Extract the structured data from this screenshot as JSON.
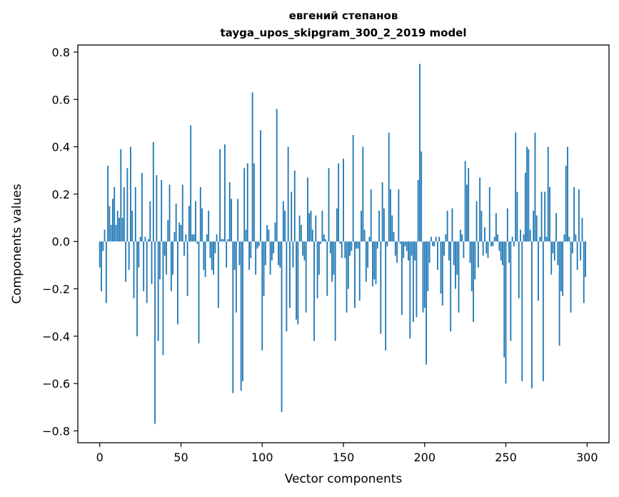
{
  "chart_data": {
    "type": "bar",
    "title": "евгений степанов",
    "subtitle": "tayga_upos_skipgram_300_2_2019 model",
    "xlabel": "Vector components",
    "ylabel": "Components values",
    "xlim": [
      -13.5,
      313.5
    ],
    "ylim": [
      -0.85,
      0.83
    ],
    "xticks": [
      0,
      50,
      100,
      150,
      200,
      250,
      300
    ],
    "yticks": [
      -0.8,
      -0.6,
      -0.4,
      -0.2,
      0.0,
      0.2,
      0.4,
      0.6,
      0.8
    ],
    "ytick_labels": [
      "−0.8",
      "−0.6",
      "−0.4",
      "−0.2",
      "0.0",
      "0.2",
      "0.4",
      "0.6",
      "0.8"
    ],
    "bar_color": "#1f77b4",
    "grid": false,
    "x": "0..299 (one bar per vector component)",
    "values": [
      -0.11,
      -0.21,
      -0.04,
      0.05,
      -0.26,
      0.32,
      0.15,
      0.07,
      0.18,
      0.23,
      0.07,
      0.13,
      0.1,
      0.39,
      0.1,
      0.23,
      -0.17,
      0.31,
      -0.12,
      0.4,
      0.13,
      -0.24,
      0.23,
      -0.4,
      -0.11,
      0.02,
      0.29,
      -0.21,
      0.02,
      -0.26,
      0.01,
      0.17,
      -0.18,
      0.42,
      -0.77,
      0.28,
      -0.42,
      -0.16,
      0.26,
      -0.48,
      -0.06,
      -0.14,
      0.09,
      0.24,
      -0.21,
      -0.14,
      0.04,
      0.16,
      -0.35,
      0.08,
      0.07,
      0.24,
      -0.06,
      0.03,
      -0.23,
      0.15,
      0.49,
      0.03,
      0.03,
      0.17,
      -0.01,
      -0.43,
      0.23,
      0.14,
      -0.12,
      -0.15,
      0.03,
      0.13,
      -0.07,
      -0.12,
      -0.14,
      -0.05,
      0.03,
      -0.28,
      0.39,
      0.01,
      0.01,
      0.41,
      -0.11,
      0.01,
      0.25,
      0.18,
      -0.64,
      -0.12,
      -0.3,
      0.18,
      -0.1,
      -0.63,
      -0.59,
      0.31,
      0.05,
      0.33,
      -0.12,
      -0.07,
      0.63,
      0.33,
      -0.14,
      -0.03,
      -0.02,
      0.47,
      -0.46,
      -0.23,
      -0.1,
      0.07,
      0.05,
      -0.14,
      -0.08,
      -0.05,
      0.08,
      0.56,
      -0.1,
      -0.11,
      -0.72,
      0.17,
      0.13,
      -0.38,
      0.4,
      -0.28,
      0.21,
      -0.11,
      0.3,
      -0.33,
      -0.35,
      0.11,
      0.07,
      -0.06,
      -0.08,
      -0.3,
      0.27,
      0.12,
      0.13,
      0.05,
      -0.42,
      0.11,
      -0.24,
      -0.14,
      -0.01,
      0.13,
      0.03,
      0.01,
      -0.23,
      0.31,
      -0.05,
      -0.17,
      -0.14,
      -0.42,
      0.14,
      0.33,
      -0.01,
      -0.07,
      0.35,
      -0.07,
      -0.3,
      -0.2,
      -0.06,
      -0.04,
      0.45,
      -0.28,
      -0.03,
      -0.03,
      -0.25,
      0.13,
      0.4,
      0.05,
      -0.17,
      -0.11,
      0.02,
      0.22,
      -0.19,
      -0.16,
      -0.18,
      -0.03,
      0.13,
      -0.39,
      0.25,
      0.14,
      -0.46,
      -0.02,
      0.46,
      0.22,
      0.11,
      0.04,
      -0.06,
      -0.09,
      0.22,
      -0.01,
      -0.31,
      -0.07,
      -0.02,
      -0.04,
      -0.08,
      -0.41,
      -0.06,
      -0.34,
      -0.08,
      -0.32,
      0.26,
      0.75,
      0.38,
      -0.3,
      -0.28,
      -0.52,
      -0.21,
      -0.09,
      0.02,
      -0.02,
      -0.02,
      0.02,
      -0.12,
      0.02,
      -0.22,
      -0.27,
      -0.06,
      0.03,
      0.13,
      -0.08,
      -0.38,
      0.14,
      -0.1,
      -0.2,
      -0.14,
      -0.3,
      0.05,
      0.03,
      -0.07,
      0.34,
      0.24,
      0.31,
      -0.09,
      -0.21,
      -0.34,
      -0.16,
      0.17,
      -0.11,
      0.27,
      0.13,
      -0.06,
      0.06,
      -0.05,
      -0.07,
      0.23,
      -0.02,
      -0.02,
      0.02,
      0.12,
      0.03,
      -0.04,
      -0.08,
      -0.1,
      -0.49,
      -0.6,
      0.14,
      -0.09,
      -0.42,
      0.02,
      -0.02,
      0.46,
      0.21,
      -0.24,
      0.05,
      -0.59,
      0.03,
      0.29,
      0.4,
      0.39,
      0.05,
      -0.62,
      0.13,
      0.46,
      0.11,
      -0.25,
      0.02,
      0.21,
      -0.59,
      0.21,
      0.02,
      0.4,
      0.23,
      -0.14,
      -0.05,
      -0.08,
      0.12,
      -0.1,
      -0.44,
      -0.21,
      -0.23,
      0.03,
      0.32,
      0.4,
      0.02,
      -0.3,
      -0.05,
      0.23,
      0.03,
      -0.12,
      0.22,
      -0.08,
      0.1,
      -0.26,
      -0.15
    ]
  }
}
